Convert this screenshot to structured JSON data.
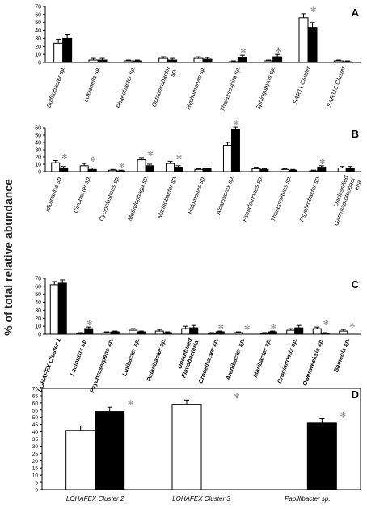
{
  "figure": {
    "ylabel": "% of total relative abundance"
  },
  "chart_data": [
    {
      "type": "bar",
      "panel_label": "A",
      "ylim": [
        0,
        70
      ],
      "yticks": [
        0,
        10,
        20,
        30,
        40,
        50,
        60,
        70
      ],
      "categories": [
        "Sulfitobacter sp.",
        "Loktanella sp.",
        "Phaeobacter sp.",
        "Octadecabacter sp.",
        "Hyphomonas sp.",
        "Thalassospira sp.",
        "Sphingopyxis sp.",
        "SAR11 Cluster",
        "SAR116 Cluster"
      ],
      "label_style": "italic",
      "series": [
        {
          "color": "#ffffff",
          "values": [
            24,
            3,
            2,
            5,
            5,
            1,
            2,
            56,
            2
          ],
          "errors": [
            5,
            2,
            1,
            2,
            2,
            1,
            1,
            5,
            1
          ]
        },
        {
          "color": "#000000",
          "values": [
            30,
            3,
            2,
            3,
            4,
            6,
            7,
            44,
            1
          ],
          "errors": [
            5,
            2,
            1,
            2,
            2,
            3,
            3,
            6,
            1
          ]
        }
      ],
      "significance_markers": [
        "",
        "",
        "",
        "",
        "",
        "✻",
        "✻",
        "✻",
        ""
      ]
    },
    {
      "type": "bar",
      "panel_label": "B",
      "ylim": [
        0,
        60
      ],
      "yticks": [
        0,
        10,
        20,
        30,
        40,
        50,
        60
      ],
      "categories": [
        "Idiomarina sp.",
        "Citrobacter sp.",
        "Cycloclasticus sp.",
        "Methylophaga sp.",
        "Marinobacter sp.",
        "Halomonas sp.",
        "Alcanivorax sp.",
        "Pseudomonas sp.",
        "Thalassolituus sp.",
        "Psychrobacter sp.",
        "Unclassified Gammaproteobacteria"
      ],
      "label_style": "italic",
      "series": [
        {
          "color": "#ffffff",
          "values": [
            12,
            8,
            2,
            16,
            11,
            3,
            36,
            4,
            3,
            1,
            5
          ],
          "errors": [
            3,
            3,
            1,
            3,
            3,
            1,
            4,
            2,
            1,
            1,
            2
          ]
        },
        {
          "color": "#000000",
          "values": [
            5,
            3,
            1,
            8,
            6,
            4,
            58,
            3,
            2,
            6,
            5
          ],
          "errors": [
            2,
            2,
            1,
            2,
            2,
            1,
            3,
            1,
            1,
            2,
            2
          ]
        }
      ],
      "significance_markers": [
        "✻",
        "✻",
        "✻",
        "✻",
        "✻",
        "",
        "✻",
        "",
        "",
        "✻",
        ""
      ]
    },
    {
      "type": "bar",
      "panel_label": "C",
      "ylim": [
        0,
        70
      ],
      "yticks": [
        0,
        10,
        20,
        30,
        40,
        50,
        60,
        70
      ],
      "categories": [
        "LOHAFEX Cluster 1",
        "Lacinutrix sp.",
        "Psychroserpens sp.",
        "Lutibacter sp.",
        "Polaribacter sp.",
        "Uncultured Flavobacteria",
        "Croceibacter sp.",
        "Arenibacter sp.",
        "Maribacter sp.",
        "Crocinitomix sp.",
        "Owenweeksia sp.",
        "Balneola sp."
      ],
      "label_style": "bold-italic",
      "series": [
        {
          "color": "#ffffff",
          "values": [
            62,
            1,
            2,
            5,
            4,
            7,
            1,
            2,
            1,
            5,
            7,
            4
          ],
          "errors": [
            4,
            1,
            1,
            2,
            2,
            3,
            1,
            1,
            1,
            2,
            2,
            2
          ]
        },
        {
          "color": "#000000",
          "values": [
            64,
            7,
            3,
            3,
            2,
            8,
            3,
            0,
            3,
            8,
            1,
            0
          ],
          "errors": [
            4,
            2,
            1,
            1,
            1,
            3,
            1,
            0,
            1,
            3,
            1,
            0
          ]
        }
      ],
      "significance_markers": [
        "",
        "✻",
        "",
        "",
        "",
        "",
        "✻",
        "✻",
        "✻",
        "",
        "✻",
        "✻"
      ]
    },
    {
      "type": "bar",
      "panel_label": "D",
      "ylim": [
        0,
        70
      ],
      "yticks": [
        0,
        5,
        10,
        15,
        20,
        25,
        30,
        35,
        40,
        45,
        50,
        55,
        60,
        65,
        70
      ],
      "categories": [
        "LOHAFEX  Cluster 2",
        "LOHAFEX  Cluster 3",
        "Papillibacter sp."
      ],
      "label_style": "italic",
      "series": [
        {
          "color": "#ffffff",
          "values": [
            41,
            59,
            null
          ],
          "errors": [
            3,
            3,
            0
          ]
        },
        {
          "color": "#000000",
          "values": [
            54,
            null,
            46
          ],
          "errors": [
            3,
            0,
            3
          ]
        }
      ],
      "significance_markers": [
        "✻",
        "✻",
        "✻"
      ]
    }
  ]
}
